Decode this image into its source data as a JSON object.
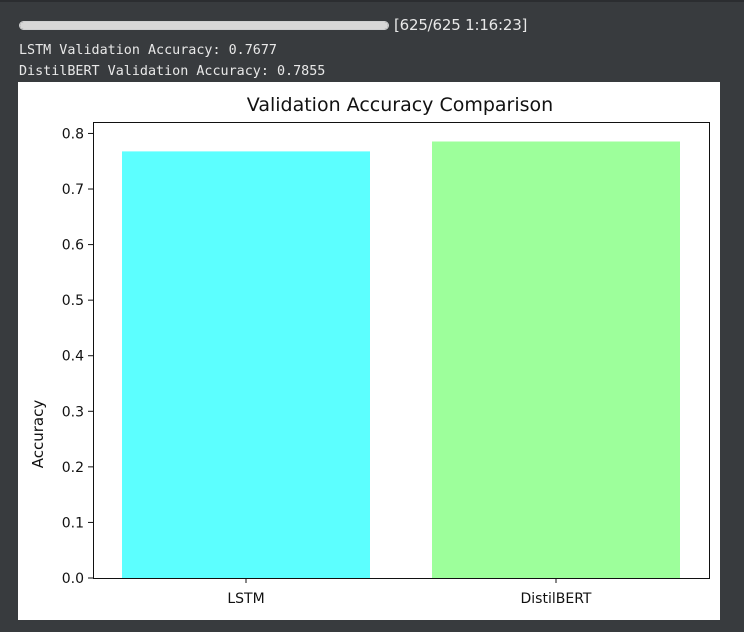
{
  "output": {
    "progress": {
      "text": "[625/625 1:16:23]",
      "fraction": 1.0,
      "fill_color": "#d7d7d7"
    },
    "log_lines": [
      "LSTM Validation Accuracy: 0.7677",
      "DistilBERT Validation Accuracy: 0.7855"
    ]
  },
  "chart_data": {
    "type": "bar",
    "title": "Validation Accuracy Comparison",
    "xlabel": "",
    "ylabel": "Accuracy",
    "categories": [
      "LSTM",
      "DistilBERT"
    ],
    "values": [
      0.7677,
      0.7855
    ],
    "colors": [
      "#5cffff",
      "#9dff9b"
    ],
    "ylim": [
      0,
      0.8206
    ],
    "yticks": [
      0.0,
      0.1,
      0.2,
      0.3,
      0.4,
      0.5,
      0.6,
      0.7,
      0.8
    ],
    "ytick_labels": [
      "0.0",
      "0.1",
      "0.2",
      "0.3",
      "0.4",
      "0.5",
      "0.6",
      "0.7",
      "0.8"
    ],
    "grid": false,
    "legend": "none"
  }
}
